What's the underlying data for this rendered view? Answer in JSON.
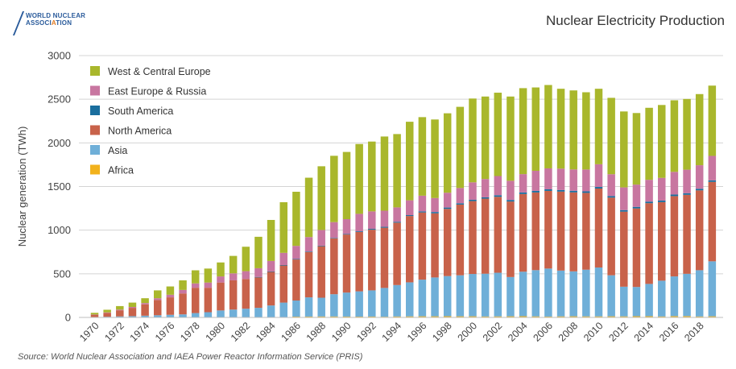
{
  "header": {
    "logo_line1": "WORLD NUCLEAR",
    "logo_line2_a": "ASSOCI",
    "logo_line2_b": "A",
    "logo_line2_c": "TION",
    "title": "Nuclear Electricity Production"
  },
  "footer": {
    "source": "Source: World Nuclear Association and IAEA Power Reactor Information Service (PRIS)"
  },
  "chart_data": {
    "type": "bar",
    "stacked": true,
    "title": "Nuclear Electricity Production",
    "xlabel": "",
    "ylabel": "Nuclear generation (TWh)",
    "ylim": [
      0,
      3000
    ],
    "yticks": [
      0,
      500,
      1000,
      1500,
      2000,
      2500,
      3000
    ],
    "grid": true,
    "legend_position": "top-left",
    "categories": [
      1970,
      1971,
      1972,
      1973,
      1974,
      1975,
      1976,
      1977,
      1978,
      1979,
      1980,
      1981,
      1982,
      1983,
      1984,
      1985,
      1986,
      1987,
      1988,
      1989,
      1990,
      1991,
      1992,
      1993,
      1994,
      1995,
      1996,
      1997,
      1998,
      1999,
      2000,
      2001,
      2002,
      2003,
      2004,
      2005,
      2006,
      2007,
      2008,
      2009,
      2010,
      2011,
      2012,
      2013,
      2014,
      2015,
      2016,
      2017,
      2018,
      2019
    ],
    "xtick_labels": [
      "1970",
      "1972",
      "1974",
      "1976",
      "1978",
      "1980",
      "1982",
      "1984",
      "1986",
      "1988",
      "1990",
      "1992",
      "1994",
      "1996",
      "1998",
      "2000",
      "2002",
      "2004",
      "2006",
      "2008",
      "2010",
      "2012",
      "2014",
      "2016",
      "2018"
    ],
    "series": [
      {
        "name": "Africa",
        "color": "#f2b21c",
        "values": [
          0,
          0,
          0,
          0,
          0,
          0,
          0,
          0,
          0,
          0,
          0,
          0,
          0,
          0,
          2,
          5,
          9,
          10,
          11,
          11,
          10,
          9,
          10,
          8,
          11,
          12,
          13,
          13,
          14,
          13,
          13,
          11,
          12,
          13,
          14,
          12,
          10,
          12,
          13,
          12,
          12,
          13,
          12,
          14,
          14,
          11,
          15,
          15,
          11,
          13
        ]
      },
      {
        "name": "Asia",
        "color": "#6fafd8",
        "values": [
          5,
          8,
          12,
          15,
          20,
          25,
          30,
          35,
          50,
          60,
          80,
          90,
          100,
          110,
          135,
          165,
          185,
          220,
          215,
          255,
          275,
          290,
          300,
          330,
          360,
          390,
          420,
          445,
          460,
          470,
          485,
          490,
          500,
          450,
          510,
          530,
          550,
          525,
          515,
          535,
          560,
          470,
          340,
          335,
          370,
          410,
          455,
          485,
          530,
          630
        ]
      },
      {
        "name": "North America",
        "color": "#c8624a",
        "values": [
          25,
          45,
          70,
          95,
          130,
          175,
          200,
          240,
          290,
          280,
          320,
          335,
          340,
          350,
          385,
          425,
          470,
          520,
          590,
          640,
          665,
          680,
          695,
          690,
          715,
          760,
          770,
          735,
          770,
          810,
          835,
          860,
          870,
          865,
          890,
          890,
          890,
          905,
          905,
          880,
          905,
          890,
          860,
          900,
          925,
          900,
          920,
          905,
          915,
          910
        ]
      },
      {
        "name": "South America",
        "color": "#1a6e9e",
        "values": [
          0,
          0,
          0,
          0,
          0,
          0,
          0,
          0,
          0,
          0,
          0,
          0,
          0,
          4,
          5,
          5,
          6,
          6,
          6,
          6,
          6,
          8,
          10,
          10,
          10,
          10,
          12,
          15,
          15,
          15,
          15,
          15,
          18,
          18,
          18,
          18,
          18,
          18,
          18,
          18,
          18,
          18,
          18,
          18,
          18,
          18,
          18,
          18,
          18,
          18
        ]
      },
      {
        "name": "East Europe & Russia",
        "color": "#c876a0",
        "values": [
          3,
          5,
          8,
          10,
          15,
          20,
          30,
          40,
          50,
          60,
          70,
          80,
          90,
          100,
          120,
          140,
          150,
          165,
          180,
          180,
          170,
          200,
          200,
          185,
          165,
          170,
          180,
          160,
          170,
          175,
          200,
          210,
          220,
          220,
          210,
          230,
          240,
          245,
          245,
          250,
          260,
          250,
          260,
          255,
          250,
          260,
          260,
          270,
          270,
          280
        ]
      },
      {
        "name": "West & Central Europe",
        "color": "#a9b72c",
        "values": [
          20,
          30,
          40,
          50,
          55,
          90,
          95,
          110,
          150,
          160,
          160,
          200,
          280,
          360,
          470,
          580,
          620,
          680,
          730,
          760,
          770,
          800,
          800,
          850,
          840,
          900,
          900,
          900,
          910,
          930,
          960,
          945,
          955,
          965,
          985,
          955,
          955,
          915,
          905,
          885,
          865,
          875,
          870,
          820,
          825,
          835,
          820,
          810,
          815,
          805
        ]
      }
    ]
  }
}
